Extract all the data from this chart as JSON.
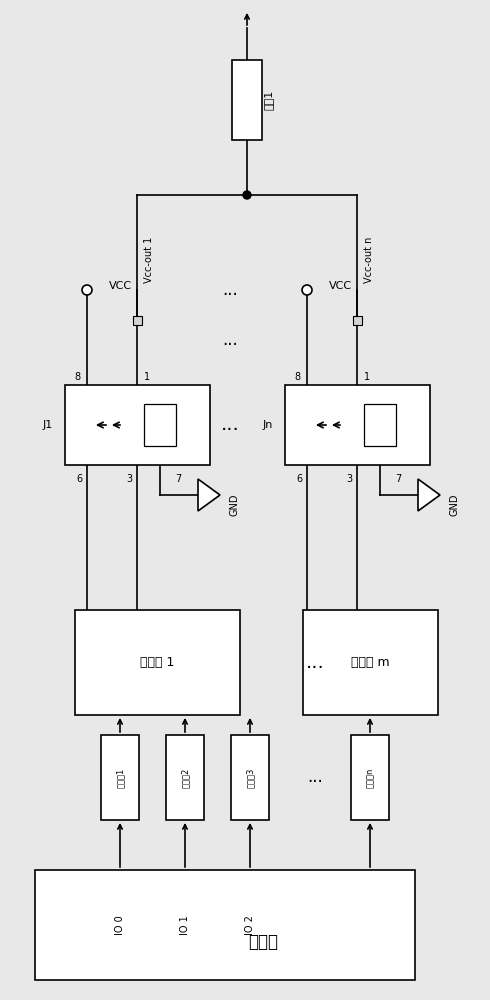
{
  "bg_color": "#e8e8e8",
  "line_color": "#000000",
  "box_color": "#ffffff",
  "figsize": [
    4.9,
    10.0
  ],
  "dpi": 100,
  "processor_label": "处理器",
  "driver1_label": "驱动器 1",
  "driverm_label": "驱动器 m",
  "opto1_label": "光耦坔1",
  "opto2_label": "光耦坔2",
  "opto3_label": "光耦坔3",
  "optoN_label": "光耦耦n",
  "relay1_label": "J1",
  "relayN_label": "Jn",
  "vcc1_label": "VCC",
  "vccN_label": "VCC",
  "vccout1_label": "Vcc-out 1",
  "vccoutN_label": "Vcc-out n",
  "io0_label": "IO 0",
  "io1_label": "IO 1",
  "io2_label": "IO 2",
  "gnd_label": "GND",
  "load_label": "负载1",
  "pin8": "8",
  "pin1": "1",
  "pin6": "6",
  "pin3": "3",
  "pin7": "7"
}
